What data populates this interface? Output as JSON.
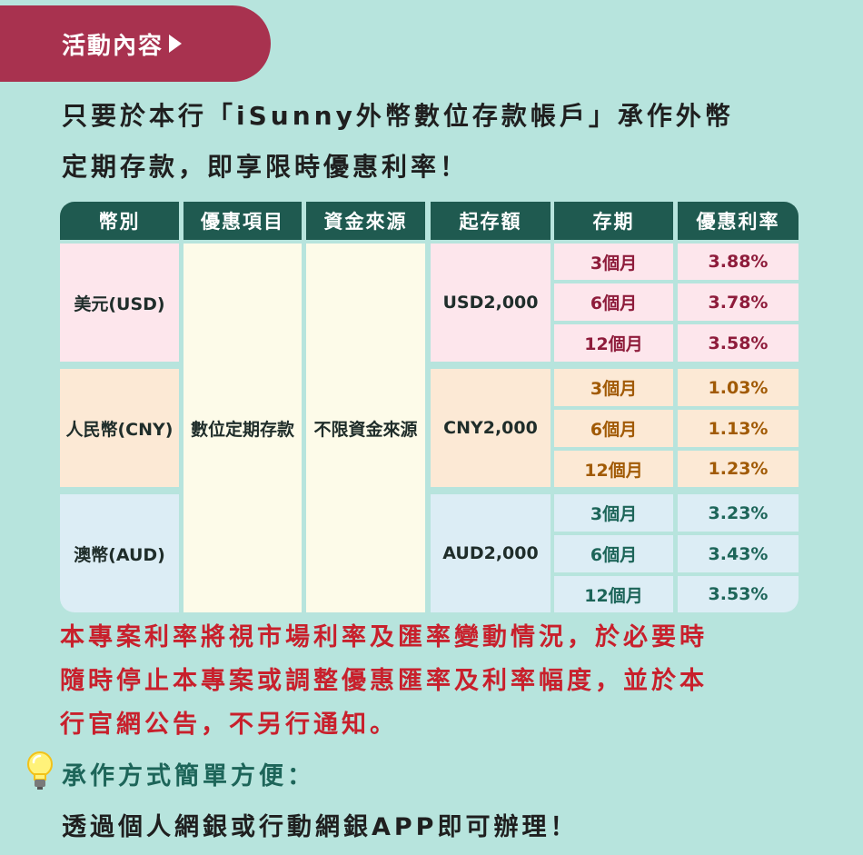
{
  "banner": {
    "label": "活動內容"
  },
  "intro": {
    "line1": "只要於本行「iSunny外幣數位存款帳戶」承作外幣",
    "line2": "定期存款，即享限時優惠利率！"
  },
  "table": {
    "headers": [
      "幣別",
      "優惠項目",
      "資金來源",
      "起存額",
      "存期",
      "優惠利率"
    ],
    "promo_item": "數位定期存款",
    "fund_source": "不限資金來源",
    "groups": [
      {
        "currency": "美元(USD)",
        "minimum": "USD2,000",
        "rows": [
          {
            "term": "3個月",
            "rate": "3.88%"
          },
          {
            "term": "6個月",
            "rate": "3.78%"
          },
          {
            "term": "12個月",
            "rate": "3.58%"
          }
        ]
      },
      {
        "currency": "人民幣(CNY)",
        "minimum": "CNY2,000",
        "rows": [
          {
            "term": "3個月",
            "rate": "1.03%"
          },
          {
            "term": "6個月",
            "rate": "1.13%"
          },
          {
            "term": "12個月",
            "rate": "1.23%"
          }
        ]
      },
      {
        "currency": "澳幣(AUD)",
        "minimum": "AUD2,000",
        "rows": [
          {
            "term": "3個月",
            "rate": "3.23%"
          },
          {
            "term": "6個月",
            "rate": "3.43%"
          },
          {
            "term": "12個月",
            "rate": "3.53%"
          }
        ]
      }
    ]
  },
  "notice": {
    "line1": "本專案利率將視市場利率及匯率變動情況，於必要時",
    "line2": "隨時停止本專案或調整優惠匯率及利率幅度，並於本",
    "line3": "行官網公告，不另行通知。"
  },
  "tip": {
    "icon": "lightbulb-icon",
    "title": "承作方式簡單方便：",
    "body": "透過個人網銀或行動網銀APP即可辦理！"
  },
  "colors": {
    "background": "#b7e4dd",
    "banner": "#a8324f",
    "header": "#1f5a50",
    "notice": "#c8202c"
  }
}
